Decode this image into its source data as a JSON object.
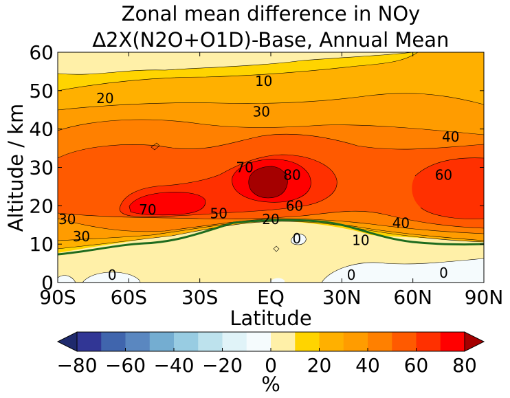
{
  "chart_data": {
    "type": "contour",
    "title": "Zonal mean difference in NOy",
    "subtitle": "∆2X(N2O+O1D)-Base, Annual Mean",
    "xlabel": "Latitude",
    "ylabel": "Altitude / km",
    "xlim": [
      -90,
      90
    ],
    "ylim": [
      0,
      60
    ],
    "x_tick_values": [
      -90,
      -60,
      -30,
      0,
      30,
      60,
      90
    ],
    "x_tick_labels": [
      "90S",
      "60S",
      "30S",
      "EQ",
      "30N",
      "60N",
      "90N"
    ],
    "y_tick_values": [
      0,
      10,
      20,
      30,
      40,
      50,
      60
    ],
    "y_tick_labels": [
      "0",
      "10",
      "20",
      "30",
      "40",
      "50",
      "60"
    ],
    "colorbar": {
      "label": "%",
      "levels": [
        -80,
        -70,
        -60,
        -50,
        -40,
        -30,
        -20,
        -10,
        0,
        10,
        20,
        30,
        40,
        50,
        60,
        70,
        80
      ],
      "tick_values": [
        -80,
        -60,
        -40,
        -20,
        0,
        20,
        40,
        60,
        80
      ],
      "tick_labels": [
        "−80",
        "−60",
        "−40",
        "−20",
        "0",
        "20",
        "40",
        "60",
        "80"
      ],
      "extend": "both",
      "colors": [
        "#313695",
        "#4065ad",
        "#5a87c0",
        "#74add1",
        "#98cce2",
        "#bde2ed",
        "#e0f3f8",
        "#f5fbfd",
        "#fff0a8",
        "#ffd400",
        "#ffb000",
        "#ff9c00",
        "#ff8000",
        "#ff5a00",
        "#ff3000",
        "#ff0000"
      ],
      "under_color": "#1f2a6d",
      "over_color": "#a50000"
    },
    "contour_labels": [
      {
        "text": "10",
        "lat": -3,
        "alt": 52.5
      },
      {
        "text": "20",
        "lat": -70,
        "alt": 48
      },
      {
        "text": "30",
        "lat": -4,
        "alt": 44.5
      },
      {
        "text": "40",
        "lat": 76,
        "alt": 38
      },
      {
        "text": "60",
        "lat": 73,
        "alt": 28
      },
      {
        "text": "70",
        "lat": -11,
        "alt": 30
      },
      {
        "text": "80",
        "lat": 9,
        "alt": 28
      },
      {
        "text": "70",
        "lat": -52,
        "alt": 19
      },
      {
        "text": "50",
        "lat": -22,
        "alt": 18
      },
      {
        "text": "60",
        "lat": 10,
        "alt": 20
      },
      {
        "text": "20",
        "lat": 0,
        "alt": 16.5
      },
      {
        "text": "40",
        "lat": 55,
        "alt": 15.5
      },
      {
        "text": "10",
        "lat": 38,
        "alt": 11
      },
      {
        "text": "30",
        "lat": -86,
        "alt": 16.5
      },
      {
        "text": "30",
        "lat": -80,
        "alt": 12
      },
      {
        "text": "0",
        "lat": 11,
        "alt": 11.5
      },
      {
        "text": "0",
        "lat": -67,
        "alt": 2
      },
      {
        "text": "0",
        "lat": 34,
        "alt": 2
      },
      {
        "text": "0",
        "lat": 73,
        "alt": 2.5
      }
    ]
  }
}
